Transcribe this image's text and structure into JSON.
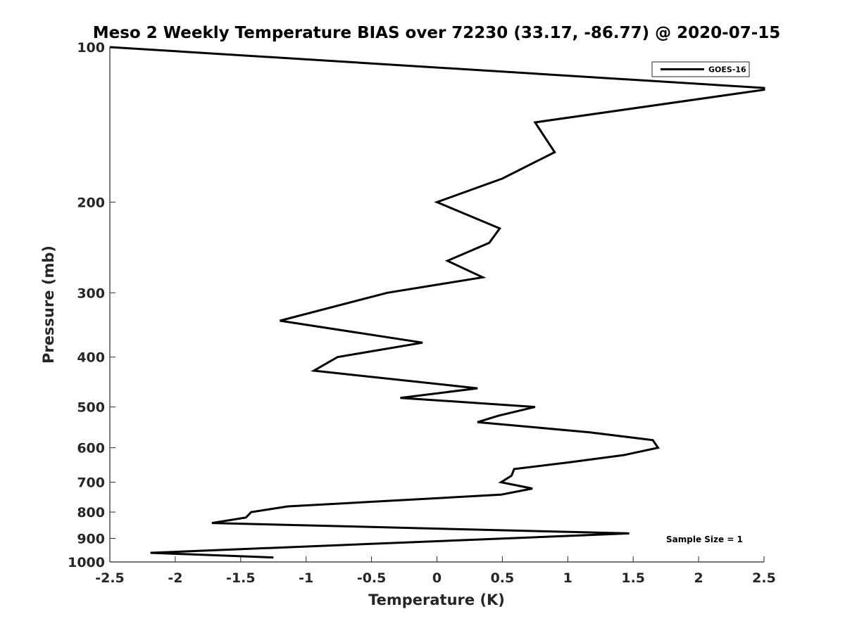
{
  "chart_data": {
    "type": "line",
    "title": "Meso 2 Weekly Temperature BIAS over 72230 (33.17, -86.77) @ 2020-07-15",
    "xlabel": "Temperature (K)",
    "ylabel": "Pressure (mb)",
    "xlim": [
      -2.5,
      2.5
    ],
    "ylim": [
      100,
      1000
    ],
    "y_scale": "log",
    "y_reversed": true,
    "x_ticks": [
      -2.5,
      -2,
      -1.5,
      -1,
      -0.5,
      0,
      0.5,
      1,
      1.5,
      2,
      2.5
    ],
    "x_tick_labels": [
      "-2.5",
      "-2",
      "-1.5",
      "-1",
      "-0.5",
      "0",
      "0.5",
      "1",
      "1.5",
      "2",
      "2.5"
    ],
    "y_ticks": [
      100,
      200,
      300,
      400,
      500,
      600,
      700,
      800,
      900,
      1000
    ],
    "y_tick_labels": [
      "100",
      "200",
      "300",
      "400",
      "500",
      "600",
      "700",
      "800",
      "900",
      "1000"
    ],
    "legend": {
      "position": "top-right",
      "entries": [
        "GOES-16"
      ]
    },
    "annotation": "Sample Size = 1",
    "series": [
      {
        "name": "GOES-16",
        "color": "#000000",
        "points": [
          {
            "x": -2.5,
            "p": 100
          },
          {
            "x": 2.5,
            "p": 120
          },
          {
            "x": 2.5,
            "p": 121
          },
          {
            "x": 0.75,
            "p": 140
          },
          {
            "x": 0.9,
            "p": 160
          },
          {
            "x": 0.5,
            "p": 180
          },
          {
            "x": 0.0,
            "p": 200
          },
          {
            "x": 0.48,
            "p": 225
          },
          {
            "x": 0.4,
            "p": 240
          },
          {
            "x": 0.08,
            "p": 260
          },
          {
            "x": 0.35,
            "p": 280
          },
          {
            "x": -0.38,
            "p": 300
          },
          {
            "x": -1.2,
            "p": 340
          },
          {
            "x": -0.11,
            "p": 375
          },
          {
            "x": -0.76,
            "p": 400
          },
          {
            "x": -0.94,
            "p": 425
          },
          {
            "x": 0.31,
            "p": 460
          },
          {
            "x": -0.28,
            "p": 480
          },
          {
            "x": 0.75,
            "p": 500
          },
          {
            "x": 0.47,
            "p": 520
          },
          {
            "x": 0.31,
            "p": 535
          },
          {
            "x": 1.17,
            "p": 560
          },
          {
            "x": 1.65,
            "p": 580
          },
          {
            "x": 1.69,
            "p": 600
          },
          {
            "x": 1.43,
            "p": 620
          },
          {
            "x": 1.02,
            "p": 640
          },
          {
            "x": 0.59,
            "p": 660
          },
          {
            "x": 0.57,
            "p": 680
          },
          {
            "x": 0.49,
            "p": 700
          },
          {
            "x": 0.73,
            "p": 720
          },
          {
            "x": 0.49,
            "p": 740
          },
          {
            "x": -1.14,
            "p": 780
          },
          {
            "x": -1.42,
            "p": 800
          },
          {
            "x": -1.46,
            "p": 820
          },
          {
            "x": -1.72,
            "p": 840
          },
          {
            "x": 1.47,
            "p": 880
          },
          {
            "x": -2.19,
            "p": 960
          },
          {
            "x": -1.25,
            "p": 980
          }
        ]
      }
    ]
  }
}
